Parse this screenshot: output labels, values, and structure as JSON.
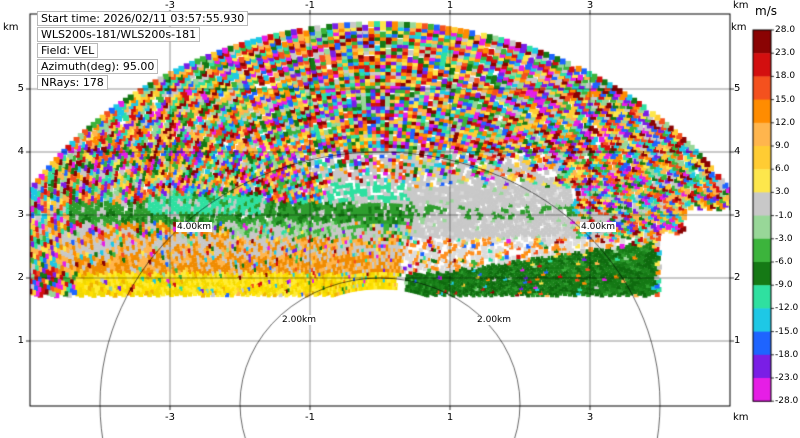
{
  "info_box": {
    "lines": [
      "Start time: 2026/02/11 03:57:55.930",
      "WLS200s-181/WLS200s-181",
      "Field: VEL",
      "Azimuth(deg): 95.00",
      "NRays: 178"
    ]
  },
  "chart_data": {
    "type": "heatmap",
    "subtype": "lidar-rhi-doppler-velocity-scan",
    "instrument": "WLS200s-181/WLS200s-181",
    "field": "VEL",
    "start_time": "2026/02/11 03:57:55.930",
    "azimuth_deg": 95.0,
    "n_rays": 178,
    "x_axis": {
      "unit": "km",
      "ticks": [
        -3,
        -1,
        1,
        3
      ],
      "tick_labels": [
        "-3",
        "-1",
        "1",
        "3"
      ],
      "range": [
        -5,
        5
      ]
    },
    "y_axis": {
      "unit": "km",
      "ticks": [
        5,
        4,
        3,
        2,
        1
      ],
      "tick_labels": [
        "5",
        "4",
        "3",
        "2",
        "1"
      ],
      "range": [
        -0.05,
        6.2
      ]
    },
    "colorbar": {
      "title": "m/s",
      "tick_labels": [
        "28.0",
        "23.0",
        "18.0",
        "15.0",
        "12.0",
        "9.0",
        "6.0",
        "3.0",
        "-1.0",
        "-3.0",
        "-6.0",
        "-9.0",
        "-12.0",
        "-15.0",
        "-18.0",
        "-23.0",
        "-28.0"
      ],
      "colors": [
        "#8a0303",
        "#d30f0f",
        "#f4511e",
        "#ff8c00",
        "#ffb54d",
        "#ffcc33",
        "#fde74c",
        "#c8c8c8",
        "#98d798",
        "#3cb43c",
        "#157915",
        "#2fe0a0",
        "#1ec8e6",
        "#1e64ff",
        "#7a1ee6",
        "#e61ee6"
      ]
    },
    "range_rings": [
      {
        "radius_km": 2.0,
        "label": "2.00km"
      },
      {
        "radius_km": 4.0,
        "label": "4.00km"
      }
    ],
    "scan_geometry": {
      "range_min_km": 1.85,
      "range_max_km": 6.05,
      "elevation_min_deg": 18,
      "elevation_max_deg": 162
    },
    "features": [
      {
        "name": "near-zero-velocity-core",
        "x_km": [
          -1.3,
          2.75
        ],
        "height_km": [
          2.3,
          3.45
        ],
        "approx_velocity_ms": "-1 to 3"
      },
      {
        "name": "yellow-band",
        "x_km": [
          -4.35,
          0.25
        ],
        "height_km": [
          1.72,
          2.07
        ],
        "approx_velocity_ms": "6 to 9"
      },
      {
        "name": "orange-band",
        "x_km": [
          -4.6,
          0.3
        ],
        "height_km": [
          2.07,
          2.6
        ],
        "approx_velocity_ms": "9 to 15"
      },
      {
        "name": "green-band",
        "x_km": [
          -4.45,
          0.45
        ],
        "height_km": [
          2.88,
          3.2
        ],
        "approx_velocity_ms": "-3 to -9"
      },
      {
        "name": "dark-green-wedge",
        "x_km": [
          0.25,
          3.95
        ],
        "height_km": [
          1.72,
          2.6
        ],
        "approx_velocity_ms": "-6 to -9"
      },
      {
        "name": "teal-streak",
        "x_km": [
          -3.35,
          -1.65
        ],
        "height_km": [
          3.0,
          3.3
        ],
        "approx_velocity_ms": "-9 to -12"
      },
      {
        "name": "low-snr-speckle",
        "extent": "remainder of scan sector",
        "approx_velocity_ms": "random noise"
      }
    ]
  }
}
